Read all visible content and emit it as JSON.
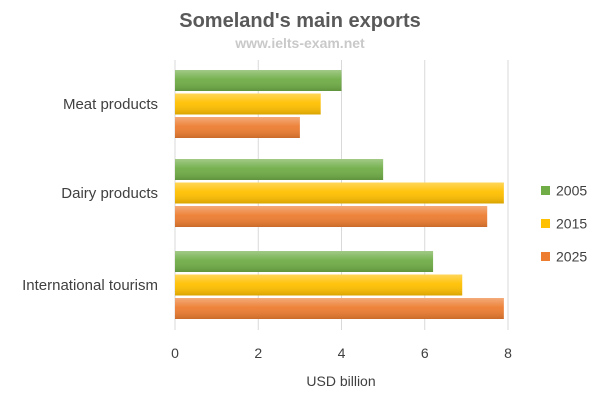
{
  "chart_data": {
    "type": "bar",
    "orientation": "horizontal",
    "title": "Someland's main exports",
    "watermark": "www.ielts-exam.net",
    "categories": [
      "Meat products",
      "Dairy products",
      "International tourism"
    ],
    "series": [
      {
        "name": "2005",
        "color": "#70ad47",
        "values": [
          4,
          5,
          6.2
        ]
      },
      {
        "name": "2015",
        "color": "#ffc000",
        "values": [
          3.5,
          7.9,
          6.9
        ]
      },
      {
        "name": "2025",
        "color": "#ed7d31",
        "values": [
          3,
          7.5,
          7.9
        ]
      }
    ],
    "xlabel": "USD billion",
    "ylabel": "",
    "xlim": [
      0,
      8
    ],
    "xticks": [
      "0",
      "2",
      "4",
      "6",
      "8"
    ],
    "grid": true,
    "legend_position": "right"
  }
}
